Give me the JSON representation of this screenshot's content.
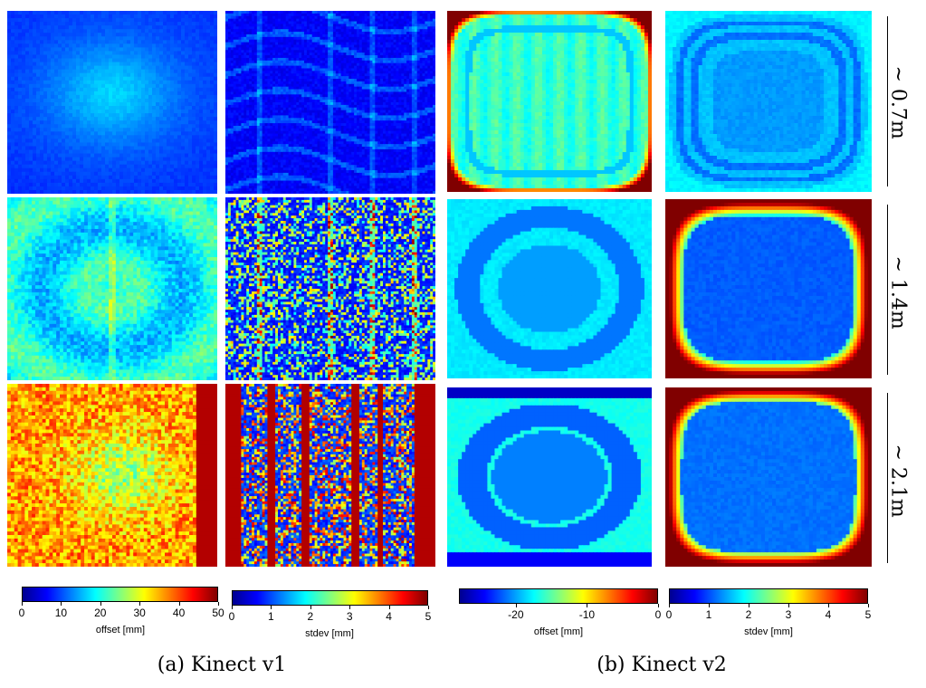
{
  "figure": {
    "captions": {
      "kinect_v1": "(a) Kinect v1",
      "kinect_v2": "(b) Kinect v2"
    },
    "distances": [
      "~ 0.7m",
      "~ 1.4m",
      "~ 2.1m"
    ],
    "colorbars": [
      {
        "label": "offset [mm]",
        "ticks": [
          "0",
          "10",
          "20",
          "30",
          "40",
          "50"
        ],
        "range": [
          0,
          50
        ]
      },
      {
        "label": "stdev [mm]",
        "ticks": [
          "0",
          "1",
          "2",
          "3",
          "4",
          "5"
        ],
        "range": [
          0,
          5
        ]
      },
      {
        "label": "offset [mm]",
        "ticks": [
          "-20",
          "-10",
          "0"
        ],
        "range": [
          -28,
          0
        ]
      },
      {
        "label": "stdev [mm]",
        "ticks": [
          "0",
          "1",
          "2",
          "3",
          "4",
          "5"
        ],
        "range": [
          0,
          5
        ]
      }
    ],
    "colormap": [
      "#00008f",
      "#0000ff",
      "#0080ff",
      "#00ffff",
      "#80ff80",
      "#ffff00",
      "#ff8000",
      "#ff0000",
      "#800000"
    ]
  }
}
